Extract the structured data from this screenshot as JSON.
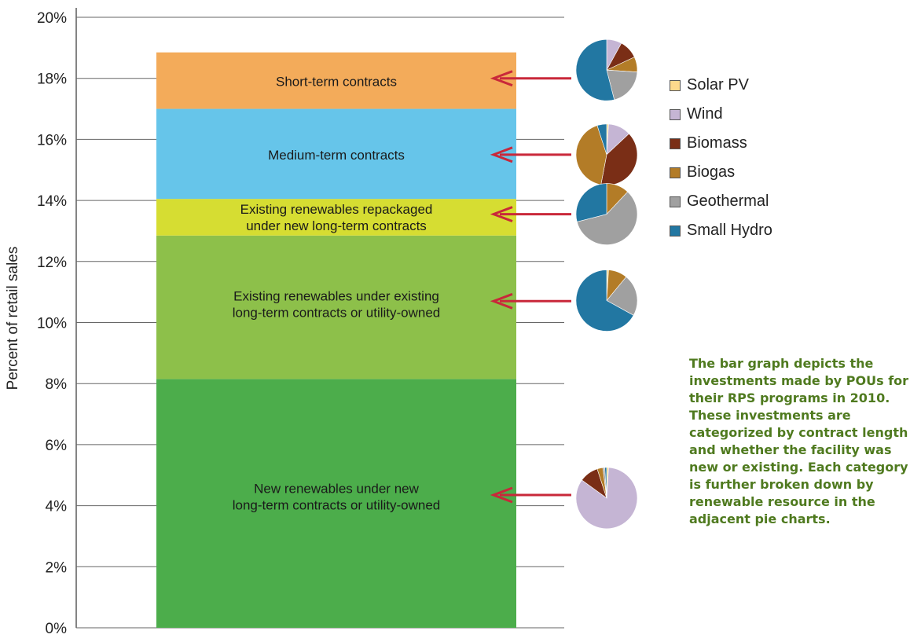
{
  "chart_data": {
    "type": "bar",
    "stacked": true,
    "ylabel": "Percent of retail sales",
    "ylim": [
      0,
      20
    ],
    "yticks": [
      "0%",
      "2%",
      "4%",
      "6%",
      "8%",
      "10%",
      "12%",
      "14%",
      "16%",
      "18%",
      "20%"
    ],
    "grid": true,
    "segments": [
      {
        "label": "New renewables under new\nlong-term contracts or utility-owned",
        "start": 0,
        "end": 8.15,
        "color": "#4cad4b"
      },
      {
        "label": "Existing renewables under existing\nlong-term contracts or utility-owned",
        "start": 8.15,
        "end": 12.85,
        "color": "#8dc04a"
      },
      {
        "label": "Existing renewables repackaged\nunder new long-term contracts",
        "start": 12.85,
        "end": 14.05,
        "color": "#d6dd32"
      },
      {
        "label": "Medium-term contracts",
        "start": 14.05,
        "end": 17.0,
        "color": "#66c5ea"
      },
      {
        "label": "Short-term contracts",
        "start": 17.0,
        "end": 18.85,
        "color": "#f3ab5a"
      }
    ],
    "arrow_color": "#c9283a",
    "resources": [
      {
        "name": "Solar PV",
        "color": "#fdd98c"
      },
      {
        "name": "Wind",
        "color": "#c5b5d4"
      },
      {
        "name": "Biomass",
        "color": "#7a2e16"
      },
      {
        "name": "Biogas",
        "color": "#b37c27"
      },
      {
        "name": "Geothermal",
        "color": "#a0a0a0"
      },
      {
        "name": "Small Hydro",
        "color": "#2277a2"
      }
    ],
    "pies": [
      {
        "segment": "Short-term contracts",
        "arrow_y": 18.0,
        "shares": [
          0,
          8,
          10,
          8,
          20,
          54
        ]
      },
      {
        "segment": "Medium-term contracts",
        "arrow_y": 15.5,
        "shares": [
          1,
          12,
          40,
          42,
          0,
          5
        ]
      },
      {
        "segment": "Existing renewables repackaged under new long-term contracts",
        "arrow_y": 13.55,
        "shares": [
          0,
          0,
          0,
          12,
          59,
          29
        ]
      },
      {
        "segment": "Existing renewables under existing long-term contracts or utility-owned",
        "arrow_y": 10.7,
        "shares": [
          1,
          0,
          0,
          10,
          22,
          67
        ]
      },
      {
        "segment": "New renewables under new long-term contracts or utility-owned",
        "arrow_y": 4.35,
        "shares": [
          1,
          84,
          10,
          3,
          1,
          1
        ]
      }
    ]
  },
  "legend": [
    "Solar PV",
    "Wind",
    "Biomass",
    "Biogas",
    "Geothermal",
    "Small Hydro"
  ],
  "note": "The bar graph depicts the investments made by POUs for their RPS programs in 2010. These investments are categorized by contract length and whether the facility was new or existing. Each category is further broken down by renewable resource in the adjacent pie charts."
}
